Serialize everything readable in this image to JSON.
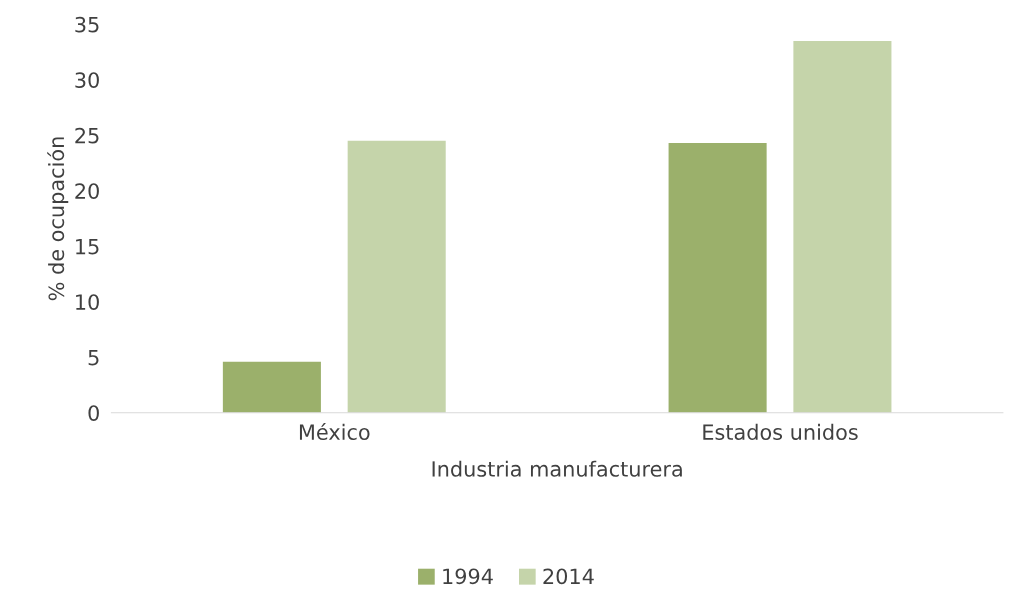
{
  "chart_data": {
    "type": "bar",
    "xlabel": "Industria manufacturera",
    "ylabel": "% de ocupación",
    "categories": [
      "México",
      "Estados unidos"
    ],
    "series": [
      {
        "name": "1994",
        "color": "#9bb06b",
        "values": [
          4.6,
          24.3
        ]
      },
      {
        "name": "2014",
        "color": "#c5d4aa",
        "values": [
          24.5,
          33.5
        ]
      }
    ],
    "ylim": [
      0,
      35
    ],
    "yticks": [
      0,
      5,
      10,
      15,
      20,
      25,
      30,
      35
    ],
    "grid": false,
    "legend": "bottom"
  }
}
